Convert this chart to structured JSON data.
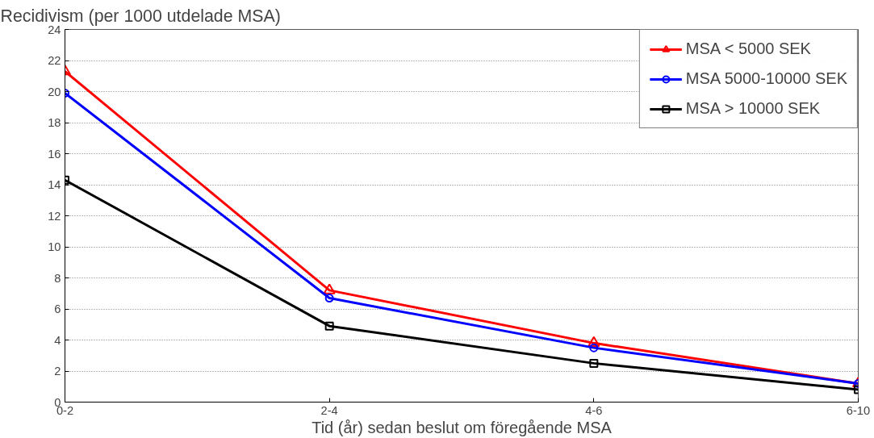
{
  "chart_data": {
    "type": "line",
    "ylabel": "Recidivism (per 1000 utdelade MSA)",
    "xlabel": "Tid (år) sedan beslut om föregående MSA",
    "categories": [
      "0-2",
      "2-4",
      "4-6",
      "6-10"
    ],
    "series": [
      {
        "name": "MSA < 5000 SEK",
        "color": "#ff0000",
        "marker": "triangle",
        "values": [
          21.3,
          7.2,
          3.8,
          1.2
        ]
      },
      {
        "name": "MSA 5000-10000 SEK",
        "color": "#0000ff",
        "marker": "circle",
        "values": [
          19.9,
          6.7,
          3.5,
          1.2
        ]
      },
      {
        "name": "MSA > 10000 SEK",
        "color": "#000000",
        "marker": "square",
        "values": [
          14.3,
          4.9,
          2.5,
          0.8
        ]
      }
    ],
    "ylim": [
      0,
      24
    ],
    "yticks": [
      0,
      2,
      4,
      6,
      8,
      10,
      12,
      14,
      16,
      18,
      20,
      22,
      24
    ],
    "grid": "y",
    "legend": "top right",
    "line_style": "solid"
  }
}
